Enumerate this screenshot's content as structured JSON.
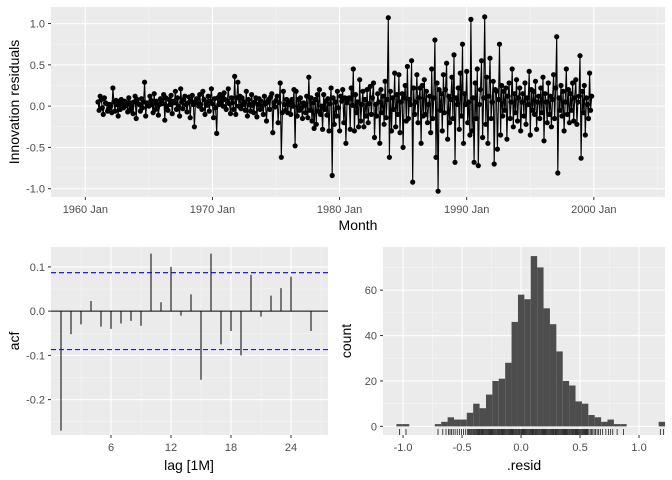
{
  "chart_data": [
    {
      "type": "line",
      "title": "",
      "xlabel": "Month",
      "ylabel": "Innovation residuals",
      "x_tick_labels": [
        "1960 Jan",
        "1970 Jan",
        "1980 Jan",
        "1990 Jan",
        "2000 Jan"
      ],
      "x_tick_years": [
        1960,
        1970,
        1980,
        1990,
        2000
      ],
      "y_tick_labels": [
        "-1.0",
        "-0.5",
        "0.0",
        "0.5",
        "1.0"
      ],
      "y_ticks": [
        -1.0,
        -0.5,
        0.0,
        0.5,
        1.0
      ],
      "x_range_years": [
        1957.3,
        2005.6
      ],
      "ylim": [
        -1.1,
        1.2
      ],
      "x_start_year": 1961.0,
      "x_step_years": 0.0833333,
      "markers": true,
      "grid": true,
      "line_color": "#000000",
      "y": [
        0.05,
        -0.05,
        0.12,
        0.08,
        -0.02,
        -0.1,
        0.1,
        0.04,
        0.03,
        -0.06,
        -0.03,
        0.02,
        0.0,
        -0.08,
        0.22,
        0.05,
        -0.06,
        0.07,
        0.02,
        -0.12,
        0.06,
        -0.04,
        0.08,
        0.03,
        -0.02,
        0.06,
        0.05,
        0.01,
        -0.07,
        0.1,
        -0.05,
        0.04,
        0.0,
        -0.09,
        0.05,
        0.12,
        -0.15,
        0.08,
        0.03,
        0.02,
        -0.06,
        0.09,
        -0.02,
        0.05,
        0.29,
        -0.12,
        0.04,
        0.01,
        0.0,
        0.12,
        0.07,
        0.02,
        -0.08,
        0.15,
        -0.04,
        0.06,
        -0.02,
        -0.11,
        0.02,
        0.09,
        0.05,
        0.03,
        0.14,
        -0.17,
        0.1,
        0.0,
        -0.05,
        0.08,
        0.02,
        0.13,
        -0.09,
        0.06,
        0.04,
        0.18,
        -0.04,
        0.1,
        0.0,
        -0.12,
        0.21,
        0.05,
        -0.03,
        0.08,
        0.12,
        0.02,
        -0.07,
        0.04,
        0.11,
        -0.14,
        0.06,
        0.13,
        0.02,
        -0.25,
        0.05,
        0.09,
        0.04,
        0.0,
        0.14,
        0.02,
        -0.04,
        0.18,
        0.08,
        -0.1,
        0.05,
        0.01,
        0.12,
        -0.06,
        0.06,
        0.21,
        0.03,
        -0.14,
        0.09,
        -0.02,
        -0.33,
        0.1,
        0.02,
        0.14,
        0.04,
        0.12,
        0.0,
        0.16,
        0.08,
        -0.04,
        0.06,
        0.21,
        0.03,
        -0.09,
        0.1,
        0.04,
        -0.04,
        0.36,
        -0.1,
        0.1,
        0.29,
        0.0,
        0.12,
        -0.03,
        0.1,
        0.02,
        0.05,
        -0.05,
        0.18,
        -0.12,
        0.08,
        0.02,
        -0.06,
        0.14,
        0.01,
        -0.08,
        0.05,
        0.1,
        -0.13,
        0.02,
        0.09,
        -0.04,
        0.06,
        0.0,
        -0.1,
        0.12,
        0.03,
        -0.18,
        0.05,
        0.08,
        -0.04,
        0.11,
        0.15,
        -0.32,
        0.04,
        -0.01,
        0.07,
        0.12,
        -0.2,
        0.04,
        0.28,
        -0.62,
        -0.08,
        0.18,
        0.02,
        -0.05,
        0.08,
        -0.08,
        0.05,
        0.02,
        -0.1,
        0.08,
        0.0,
        0.2,
        -0.48,
        0.18,
        -0.12,
        0.08,
        -0.05,
        0.1,
        -0.02,
        -0.15,
        0.04,
        0.01,
        -0.08,
        0.12,
        -0.14,
        0.35,
        -0.05,
        0.1,
        -0.18,
        0.04,
        -0.27,
        0.08,
        -0.22,
        0.14,
        -0.06,
        0.2,
        -0.1,
        0.0,
        -0.28,
        0.14,
        -0.04,
        0.06,
        -0.11,
        0.09,
        -0.3,
        0.03,
        0.22,
        -0.84,
        0.1,
        -0.22,
        0.05,
        -0.12,
        0.18,
        -0.02,
        -0.3,
        0.12,
        0.06,
        0.2,
        -0.2,
        0.1,
        -0.45,
        0.04,
        0.08,
        0.1,
        -0.28,
        0.22,
        0.01,
        0.45,
        -0.3,
        0.14,
        -0.08,
        0.05,
        -0.25,
        0.32,
        -0.18,
        0.02,
        0.18,
        -0.25,
        0.08,
        -0.12,
        0.2,
        -0.2,
        0.03,
        0.24,
        -0.1,
        0.1,
        0.28,
        -0.38,
        0.02,
        -0.12,
        0.15,
        0.05,
        -0.45,
        0.2,
        -0.08,
        0.12,
        -0.22,
        0.3,
        -0.14,
        0.08,
        1.07,
        -0.62,
        0.18,
        -0.3,
        0.1,
        -0.04,
        0.4,
        -0.25,
        0.14,
        -0.1,
        0.38,
        -0.32,
        0.05,
        0.15,
        -0.5,
        0.1,
        0.25,
        -0.18,
        0.48,
        -0.15,
        0.08,
        0.02,
        0.55,
        -0.92,
        0.22,
        -0.1,
        0.05,
        0.38,
        -0.2,
        0.1,
        0.22,
        -0.45,
        0.25,
        -0.12,
        0.32,
        -0.1,
        0.18,
        -0.2,
        0.02,
        0.12,
        -0.32,
        0.45,
        -0.15,
        0.1,
        0.8,
        -0.62,
        0.28,
        -1.03,
        0.2,
        -0.05,
        0.15,
        -0.3,
        0.38,
        -0.08,
        0.2,
        0.52,
        -0.4,
        0.12,
        -0.2,
        0.08,
        0.35,
        -0.15,
        0.62,
        -0.68,
        0.1,
        0.02,
        0.22,
        -0.28,
        0.4,
        -0.12,
        0.75,
        -0.45,
        0.15,
        0.02,
        0.42,
        -0.2,
        0.05,
        -0.35,
        1.05,
        -0.3,
        0.1,
        -0.68,
        0.28,
        -0.15,
        0.45,
        -0.72,
        0.02,
        0.2,
        0.55,
        -0.38,
        0.1,
        1.08,
        -0.22,
        0.35,
        -0.45,
        0.12,
        0.58,
        -0.15,
        0.05,
        0.3,
        -0.7,
        0.2,
        0.18,
        -0.52,
        0.08,
        0.75,
        -0.35,
        0.25,
        -0.12,
        0.18,
        -0.05,
        0.22,
        -0.4,
        0.12,
        0.28,
        -0.15,
        0.05,
        0.45,
        -0.25,
        0.15,
        -0.08,
        0.32,
        -0.18,
        0.1,
        0.22,
        -0.3,
        0.05,
        0.15,
        -0.12,
        0.28,
        -0.22,
        0.1,
        0.02,
        0.42,
        -0.35,
        0.2,
        -0.05,
        0.18,
        -0.1,
        0.3,
        -0.28,
        0.05,
        0.12,
        -0.15,
        0.22,
        -0.08,
        0.35,
        -0.42,
        0.15,
        0.05,
        -0.2,
        0.28,
        -0.1,
        0.12,
        -0.25,
        0.08,
        0.38,
        -0.15,
        0.22,
        0.84,
        -0.81,
        0.1,
        -0.05,
        0.25,
        -0.12,
        0.18,
        -0.3,
        0.05,
        0.45,
        -0.1,
        0.2,
        -0.2,
        0.15,
        -0.05,
        0.28,
        -0.18,
        0.1,
        0.32,
        -0.22,
        0.05,
        0.12,
        0.61,
        -0.63,
        0.18,
        -0.08,
        0.25,
        -0.35,
        0.1,
        0.02,
        -0.15,
        0.4,
        -0.05,
        0.12
      ]
    },
    {
      "type": "bar",
      "title": "",
      "xlabel": "lag [1M]",
      "ylabel": "acf",
      "x_tick_labels": [
        "6",
        "12",
        "18",
        "24"
      ],
      "x_ticks": [
        6,
        12,
        18,
        24
      ],
      "y_tick_labels": [
        "-0.2",
        "-0.1",
        "0.0",
        "0.1"
      ],
      "y_ticks": [
        -0.2,
        -0.1,
        0.0,
        0.1
      ],
      "xlim": [
        0.0,
        27.7
      ],
      "ylim": [
        -0.28,
        0.145
      ],
      "lags": [
        1,
        2,
        3,
        4,
        5,
        6,
        7,
        8,
        9,
        10,
        11,
        12,
        13,
        14,
        15,
        16,
        17,
        18,
        19,
        20,
        21,
        22,
        23,
        24,
        25,
        26
      ],
      "values": [
        -0.27,
        -0.052,
        -0.03,
        0.023,
        -0.035,
        -0.04,
        -0.028,
        -0.022,
        -0.033,
        0.13,
        0.02,
        0.1,
        -0.01,
        0.038,
        -0.155,
        0.13,
        -0.075,
        -0.045,
        -0.1,
        0.082,
        -0.012,
        0.035,
        0.052,
        0.078,
        0.0,
        -0.045
      ],
      "confidence_bounds": [
        -0.087,
        0.087
      ],
      "bound_color": "#0000ff",
      "grid": true
    },
    {
      "type": "bar",
      "subtype": "histogram",
      "title": "",
      "xlabel": ".resid",
      "ylabel": "count",
      "x_tick_labels": [
        "-1.0",
        "-0.5",
        "0.0",
        "0.5",
        "1.0"
      ],
      "x_ticks": [
        -1.0,
        -0.5,
        0.0,
        0.5,
        1.0
      ],
      "y_tick_labels": [
        "0",
        "20",
        "40",
        "60"
      ],
      "y_ticks": [
        0,
        20,
        40,
        60
      ],
      "xlim": [
        -1.17,
        1.22
      ],
      "ylim": [
        -3.8,
        79
      ],
      "bin_width": 0.0542,
      "bin_start": -1.056,
      "counts": [
        1,
        1,
        0,
        0,
        0,
        0,
        1,
        2,
        4,
        3,
        3,
        6,
        10,
        8,
        14,
        20,
        21,
        28,
        46,
        58,
        56,
        75,
        70,
        52,
        45,
        33,
        20,
        18,
        11,
        10,
        5,
        4,
        2,
        3,
        1,
        1,
        0,
        0,
        0,
        0,
        0,
        2
      ],
      "bar_color": "#4d4d4d",
      "rug": true,
      "grid": true
    }
  ]
}
